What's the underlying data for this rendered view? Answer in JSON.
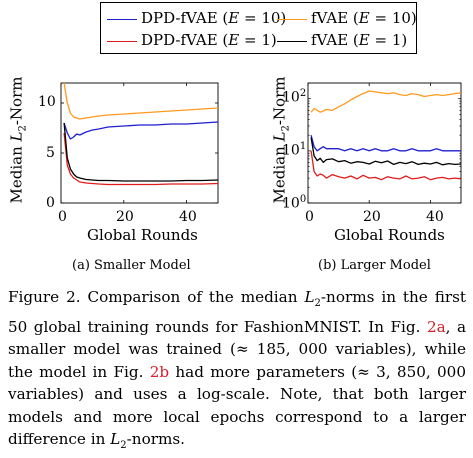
{
  "legend": {
    "items": [
      {
        "label": "DPD-fVAE (E = 10)",
        "color": "#1f1fd0"
      },
      {
        "label": "fVAE (E = 10)",
        "color": "#ff9a1f"
      },
      {
        "label": "DPD-fVAE (E = 1)",
        "color": "#e01b1b"
      },
      {
        "label": "fVAE (E = 1)",
        "color": "#000000"
      }
    ]
  },
  "chart_data": [
    {
      "type": "line",
      "ylabel": "Median L2-Norm",
      "xlabel": "Global Rounds",
      "xlim": [
        0,
        50
      ],
      "ylim": [
        0,
        12
      ],
      "xticks": [
        "0",
        "20",
        "40"
      ],
      "yticks": [
        "0",
        "5",
        "10"
      ],
      "x": [
        1,
        2,
        3,
        4,
        5,
        6,
        8,
        10,
        12,
        15,
        20,
        25,
        30,
        35,
        40,
        45,
        50
      ],
      "series": [
        {
          "name": "DPD-fVAE (E = 10)",
          "color": "#1f1fd0",
          "values": [
            8.0,
            7.0,
            6.4,
            6.6,
            6.9,
            6.8,
            7.1,
            7.3,
            7.4,
            7.6,
            7.7,
            7.8,
            7.8,
            7.9,
            7.9,
            8.0,
            8.1
          ]
        },
        {
          "name": "fVAE (E = 10)",
          "color": "#ff9a1f",
          "values": [
            12.0,
            10.0,
            9.0,
            8.6,
            8.5,
            8.4,
            8.5,
            8.6,
            8.7,
            8.8,
            8.9,
            9.0,
            9.1,
            9.2,
            9.3,
            9.4,
            9.5
          ]
        },
        {
          "name": "DPD-fVAE (E = 1)",
          "color": "#e01b1b",
          "values": [
            7.0,
            3.8,
            2.9,
            2.5,
            2.3,
            2.1,
            2.0,
            1.95,
            1.9,
            1.85,
            1.85,
            1.85,
            1.85,
            1.9,
            1.9,
            1.9,
            1.95
          ]
        },
        {
          "name": "fVAE (E = 1)",
          "color": "#000000",
          "values": [
            8.0,
            4.5,
            3.4,
            2.9,
            2.6,
            2.5,
            2.35,
            2.3,
            2.25,
            2.25,
            2.2,
            2.2,
            2.2,
            2.2,
            2.25,
            2.25,
            2.3
          ]
        }
      ]
    },
    {
      "type": "line",
      "ylabel": "Median L2-Norm",
      "xlabel": "Global Rounds",
      "scale": "log",
      "xlim": [
        0,
        50
      ],
      "ylim": [
        1,
        200
      ],
      "xticks": [
        "0",
        "20",
        "40"
      ],
      "yticks": [
        "10^0",
        "10^1",
        "10^2"
      ],
      "x": [
        1,
        2,
        3,
        4,
        5,
        6,
        8,
        10,
        12,
        14,
        16,
        18,
        20,
        22,
        24,
        26,
        28,
        30,
        32,
        34,
        36,
        38,
        40,
        42,
        44,
        46,
        48,
        50
      ],
      "series": [
        {
          "name": "DPD-fVAE (E = 10)",
          "color": "#1f1fd0",
          "values": [
            20,
            12,
            10,
            11,
            12,
            11,
            11,
            11,
            10,
            11,
            10,
            11,
            10,
            11,
            10,
            10,
            11,
            10,
            10,
            11,
            10,
            10,
            10,
            11,
            10,
            10,
            10,
            10
          ]
        },
        {
          "name": "fVAE (E = 10)",
          "color": "#ff9a1f",
          "values": [
            55,
            65,
            60,
            55,
            58,
            62,
            60,
            70,
            80,
            95,
            110,
            125,
            140,
            135,
            130,
            125,
            130,
            120,
            115,
            125,
            120,
            110,
            115,
            120,
            115,
            120,
            125,
            130
          ]
        },
        {
          "name": "DPD-fVAE (E = 1)",
          "color": "#e01b1b",
          "values": [
            10,
            4.0,
            3.3,
            3.6,
            3.4,
            3.0,
            3.5,
            3.2,
            3.0,
            3.3,
            2.9,
            3.4,
            3.0,
            3.1,
            2.8,
            3.2,
            3.0,
            2.9,
            3.3,
            2.9,
            3.0,
            3.2,
            2.8,
            3.0,
            3.1,
            2.9,
            3.0,
            2.9
          ]
        },
        {
          "name": "fVAE (E = 1)",
          "color": "#000000",
          "values": [
            18,
            8,
            6.5,
            7.2,
            6.0,
            6.8,
            7.0,
            6.2,
            6.5,
            5.8,
            6.2,
            6.0,
            5.6,
            6.3,
            5.9,
            6.4,
            5.5,
            6.0,
            5.7,
            6.2,
            5.5,
            5.8,
            5.6,
            6.0,
            5.4,
            5.7,
            5.5,
            5.6
          ]
        }
      ]
    }
  ],
  "subcaptions": {
    "a": "(a) Smaller Model",
    "b": "(b) Larger Model"
  },
  "caption": {
    "t1": "Figure 2.  Comparison of the median ",
    "t2": "-norms in the first 50 global training rounds for FashionMNIST. In Fig. ",
    "ref_a": "2a",
    "t3": ", a smaller model was trained (≈ 185, 000 variables), while the model in Fig. ",
    "ref_b": "2b",
    "t4": " had more parameters (≈ 3, 850, 000 variables) and uses a log-scale. Note, that both larger models and more local epochs correspond to a larger difference in ",
    "t5": "-norms."
  }
}
